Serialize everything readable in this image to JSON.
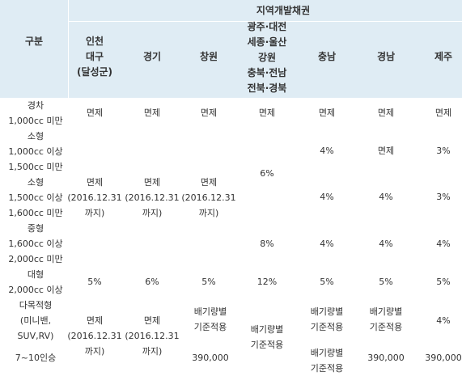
{
  "header": {
    "group_title": "지역개발채권",
    "category": "구분",
    "regions": {
      "incheon_daegu": [
        "인천",
        "대구",
        "(달성군)"
      ],
      "gyeonggi": "경기",
      "changwon": "창원",
      "gwangju_group": [
        "광주·대전",
        "세종·울산",
        "강원",
        "충북·전남",
        "전북·경북"
      ],
      "chungnam": "충남",
      "gyeongnam": "경남",
      "jeju": "제주"
    }
  },
  "rows": {
    "compact": {
      "label": [
        "경차",
        "1,000cc 미만"
      ],
      "incheon_daegu": "면제",
      "gyeonggi": "면제",
      "changwon": "면제",
      "gwangju_group": "면제",
      "chungnam": "면제",
      "gyeongnam": "면제",
      "jeju": "면제"
    },
    "small_a": {
      "label": [
        "소형",
        "1,000cc 이상",
        "1,500cc 미만"
      ],
      "chungnam": "4%",
      "gyeongnam": "면제",
      "jeju": "3%"
    },
    "small_b": {
      "label": [
        "소형",
        "1,500cc 이상",
        "1,600cc 미만"
      ],
      "chungnam": "4%",
      "gyeongnam": "4%",
      "jeju": "3%"
    },
    "exempt_merged": [
      "면제",
      "(2016.12.31",
      "까지)"
    ],
    "gwangju_small": "6%",
    "mid": {
      "label": [
        "중형",
        "1,600cc 이상",
        "2,000cc 미만"
      ],
      "gwangju_group": "8%",
      "chungnam": "4%",
      "gyeongnam": "4%",
      "jeju": "4%"
    },
    "large": {
      "label": [
        "대형",
        "2,000cc 이상"
      ],
      "incheon_daegu": "5%",
      "gyeonggi": "6%",
      "changwon": "5%",
      "gwangju_group": "12%",
      "chungnam": "5%",
      "gyeongnam": "5%",
      "jeju": "5%"
    },
    "multi": {
      "label": [
        "다목적형",
        "(미니밴,",
        "SUV,RV)",
        "7~10인승"
      ],
      "incheon_daegu": [
        "면제",
        "(2016.12.31",
        "까지)"
      ],
      "gyeonggi": [
        "면제",
        "(2016.12.31",
        "까지)"
      ],
      "changwon": [
        "배기량별",
        "기준적용",
        "390,000"
      ],
      "gwangju_group": [
        "배기량별",
        "기준적용"
      ],
      "chungnam": [
        "배기량별",
        "기준적용",
        "배기량별",
        "기준적용"
      ],
      "gyeongnam": [
        "배기량별",
        "기준적용",
        "390,000"
      ],
      "jeju": [
        "4%",
        "390,000"
      ]
    }
  }
}
